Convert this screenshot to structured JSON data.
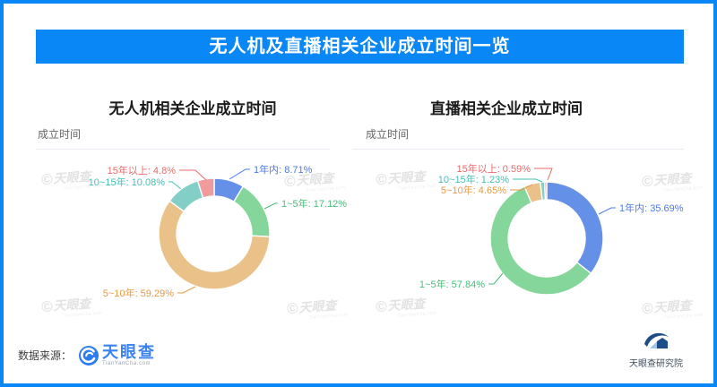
{
  "page": {
    "title": "无人机及直播相关企业成立时间一览",
    "accent_color": "#0987F7",
    "source_label": "数据来源：",
    "brand": {
      "name": "天眼查",
      "domain": "TianYanCha.com"
    },
    "institute": "天眼查研究院",
    "watermark": {
      "text": "天眼查",
      "subtext": "TianYanCha.com"
    }
  },
  "chart_data": [
    {
      "type": "pie",
      "variant": "donut",
      "title": "无人机相关企业成立时间",
      "subtitle": "成立时间",
      "categories": [
        "1年内",
        "1~5年",
        "5~10年",
        "10~15年",
        "15年以上"
      ],
      "values": [
        8.71,
        17.12,
        59.29,
        10.08,
        4.8
      ],
      "unit": "%",
      "colors": [
        "#6590E8",
        "#85D69A",
        "#E9C189",
        "#83CFC8",
        "#F09C9C"
      ],
      "label_colors": [
        "#4D7BE5",
        "#49BE79",
        "#E79A45",
        "#45BFB5",
        "#EA6A6A"
      ],
      "legend_position": "none",
      "labels": "outside-with-leader-lines"
    },
    {
      "type": "pie",
      "variant": "donut",
      "title": "直播相关企业成立时间",
      "subtitle": "成立时间",
      "categories": [
        "1年内",
        "1~5年",
        "5~10年",
        "10~15年",
        "15年以上"
      ],
      "values": [
        35.69,
        57.84,
        4.65,
        1.23,
        0.59
      ],
      "unit": "%",
      "colors": [
        "#6590E8",
        "#85D69A",
        "#E9C189",
        "#83CFC8",
        "#F09C9C"
      ],
      "label_colors": [
        "#4D7BE5",
        "#49BE79",
        "#E79A45",
        "#45BFB5",
        "#EA6A6A"
      ],
      "legend_position": "none",
      "labels": "outside-with-leader-lines"
    }
  ]
}
